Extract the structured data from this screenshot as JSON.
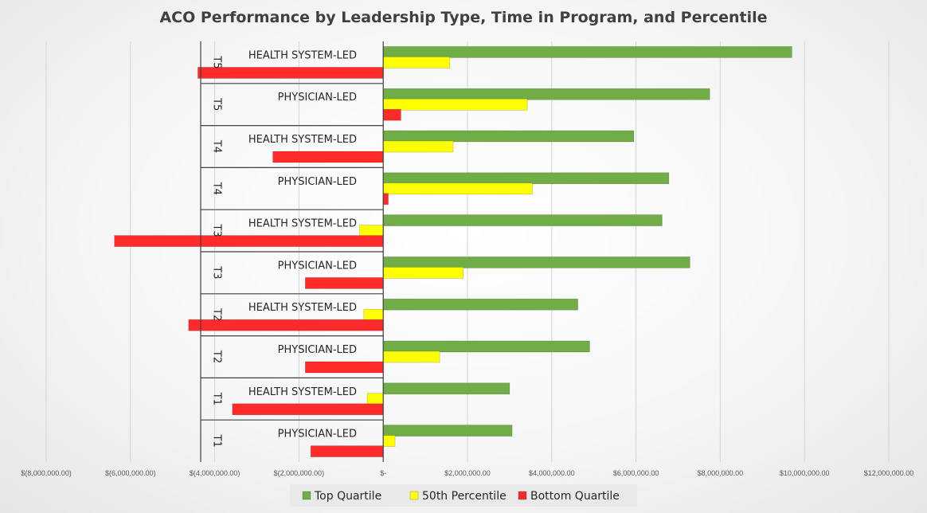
{
  "chart_data": {
    "type": "bar",
    "orientation": "horizontal",
    "title": "ACO Performance by Leadership Type, Time in Program, and Percentile",
    "xlabel": "",
    "ylabel": "",
    "xlim": [
      -8000000,
      12000000
    ],
    "x_ticks": [
      -8000000,
      -6000000,
      -4000000,
      -2000000,
      0,
      2000000,
      4000000,
      6000000,
      8000000,
      10000000,
      12000000
    ],
    "x_tick_labels": [
      "$(8,000,000.00)",
      "$(6,000,000.00)",
      "$(4,000,000.00)",
      "$(2,000,000.00)",
      "$-",
      "$2,000,000.00",
      "$4,000,000.00",
      "$6,000,000.00",
      "$8,000,000.00",
      "$10,000,000.00",
      "$12,000,000.00"
    ],
    "grid": true,
    "legend_position": "bottom",
    "categories": [
      {
        "group": "T5",
        "label": "HEALTH SYSTEM-LED"
      },
      {
        "group": "T5",
        "label": "PHYSICIAN-LED"
      },
      {
        "group": "T4",
        "label": "HEALTH SYSTEM-LED"
      },
      {
        "group": "T4",
        "label": "PHYSICIAN-LED"
      },
      {
        "group": "T3",
        "label": "HEALTH SYSTEM-LED"
      },
      {
        "group": "T3",
        "label": "PHYSICIAN-LED"
      },
      {
        "group": "T2",
        "label": "HEALTH SYSTEM-LED"
      },
      {
        "group": "T2",
        "label": "PHYSICIAN-LED"
      },
      {
        "group": "T1",
        "label": "HEALTH SYSTEM-LED"
      },
      {
        "group": "T1",
        "label": "PHYSICIAN-LED"
      }
    ],
    "series": [
      {
        "name": "Top Quartile",
        "color": "#70ad47",
        "values": [
          9700000,
          7750000,
          5950000,
          6780000,
          6620000,
          7280000,
          4620000,
          4900000,
          3000000,
          3060000
        ]
      },
      {
        "name": "50th Percentile",
        "color": "#ffff00",
        "values": [
          1580000,
          3420000,
          1660000,
          3540000,
          -560000,
          1900000,
          -460000,
          1340000,
          -380000,
          280000
        ]
      },
      {
        "name": "Bottom Quartile",
        "color": "#ff2a2a",
        "values": [
          -4400000,
          420000,
          -2620000,
          120000,
          -6380000,
          -1850000,
          -4620000,
          -1850000,
          -3580000,
          -1720000
        ]
      }
    ]
  }
}
